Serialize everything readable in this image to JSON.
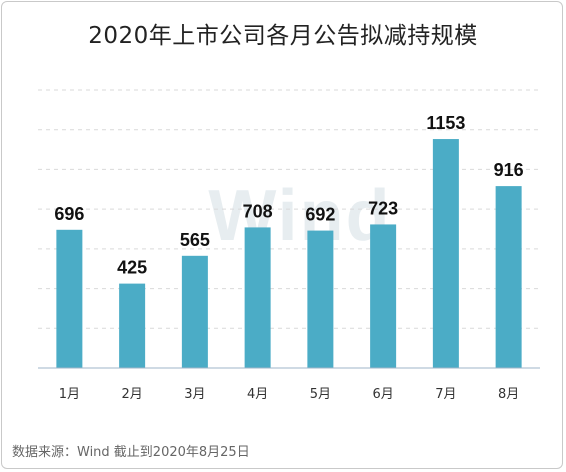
{
  "title": "2020年上市公司各月公告拟减持规模",
  "source": "数据来源：Wind  截止到2020年8月25日",
  "watermark": "Wind",
  "colors": {
    "bar": "#4bacc6",
    "grid": "#d9d9d9",
    "axis": "#9fb6c8"
  },
  "chart_data": {
    "type": "bar",
    "title": "2020年上市公司各月公告拟减持规模",
    "xlabel": "",
    "ylabel": "",
    "categories": [
      "1月",
      "2月",
      "3月",
      "4月",
      "5月",
      "6月",
      "7月",
      "8月"
    ],
    "values": [
      696,
      425,
      565,
      708,
      692,
      723,
      1153,
      916
    ],
    "ylim": [
      0,
      1400
    ],
    "grid": true,
    "legend": "none"
  }
}
